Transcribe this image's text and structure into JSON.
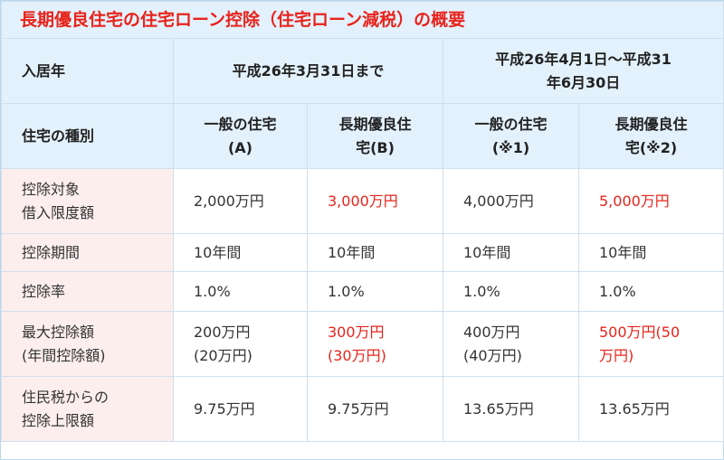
{
  "title": "長期優良住宅の住宅ローン控除（住宅ローン減税）の概要",
  "header1": {
    "label": "入居年",
    "period1": "平成26年3月31日まで",
    "period2_line1": "平成26年4月1日～平成31",
    "period2_line2": "年6月30日"
  },
  "header2": {
    "label": "住宅の種別",
    "col1_line1": "一般の住宅",
    "col1_line2": "(A)",
    "col2_line1": "長期優良住",
    "col2_line2": "宅(B)",
    "col3_line1": "一般の住宅",
    "col3_line2": "(※1)",
    "col4_line1": "長期優良住",
    "col4_line2": "宅(※2)"
  },
  "rows": [
    {
      "label_line1": "控除対象",
      "label_line2": "借入限度額",
      "c1": "2,000万円",
      "c2": "3,000万円",
      "c3": "4,000万円",
      "c4": "5,000万円"
    },
    {
      "label": "控除期間",
      "c1": "10年間",
      "c2": "10年間",
      "c3": "10年間",
      "c4": "10年間"
    },
    {
      "label": "控除率",
      "c1": "1.0%",
      "c2": "1.0%",
      "c3": "1.0%",
      "c4": "1.0%"
    },
    {
      "label_line1": "最大控除額",
      "label_line2": "(年間控除額)",
      "c1_line1": "200万円",
      "c1_line2": "(20万円)",
      "c2_line1": "300万円",
      "c2_line2": "(30万円)",
      "c3_line1": "400万円",
      "c3_line2": "(40万円)",
      "c4_line1": "500万円(50",
      "c4_line2": "万円)"
    },
    {
      "label_line1": "住民税からの",
      "label_line2": "控除上限額",
      "c1": "9.75万円",
      "c2": "9.75万円",
      "c3": "13.65万円",
      "c4": "13.65万円"
    }
  ],
  "colors": {
    "accent_red": "#e8231b",
    "header_bg": "#e3f1fc",
    "label_bg": "#fdeeee"
  }
}
